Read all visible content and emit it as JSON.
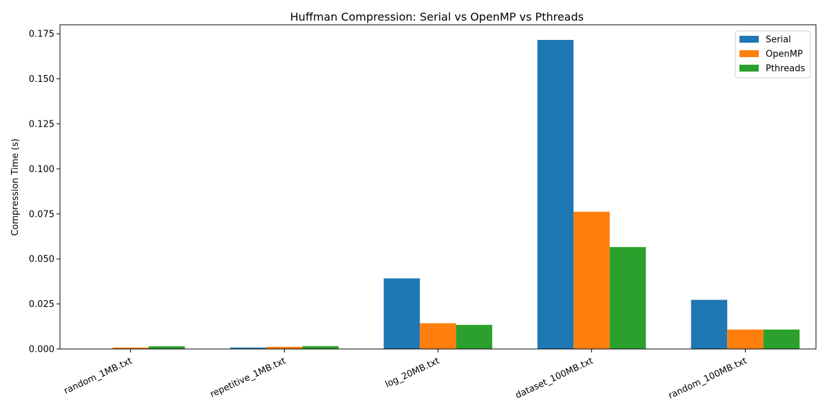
{
  "chart_data": {
    "type": "bar",
    "title": "Huffman Compression: Serial vs OpenMP vs Pthreads",
    "xlabel": "",
    "ylabel": "Compression Time (s)",
    "categories": [
      "random_1MB.txt",
      "repetitive_1MB.txt",
      "log_20MB.txt",
      "dataset_100MB.txt",
      "random_100MB.txt"
    ],
    "series": [
      {
        "name": "Serial",
        "color": "#1f77b4",
        "values": [
          0.0001,
          0.0008,
          0.0392,
          0.1716,
          0.0273
        ]
      },
      {
        "name": "OpenMP",
        "color": "#ff7f0e",
        "values": [
          0.0008,
          0.0012,
          0.0143,
          0.0762,
          0.0108
        ]
      },
      {
        "name": "Pthreads",
        "color": "#2ca02c",
        "values": [
          0.0015,
          0.0016,
          0.0134,
          0.0566,
          0.0108
        ]
      }
    ],
    "ylim": [
      0,
      0.18
    ],
    "yticks": [
      "0.000",
      "0.025",
      "0.050",
      "0.075",
      "0.100",
      "0.125",
      "0.150",
      "0.175"
    ],
    "grid": false,
    "legend_position": "top-right"
  }
}
